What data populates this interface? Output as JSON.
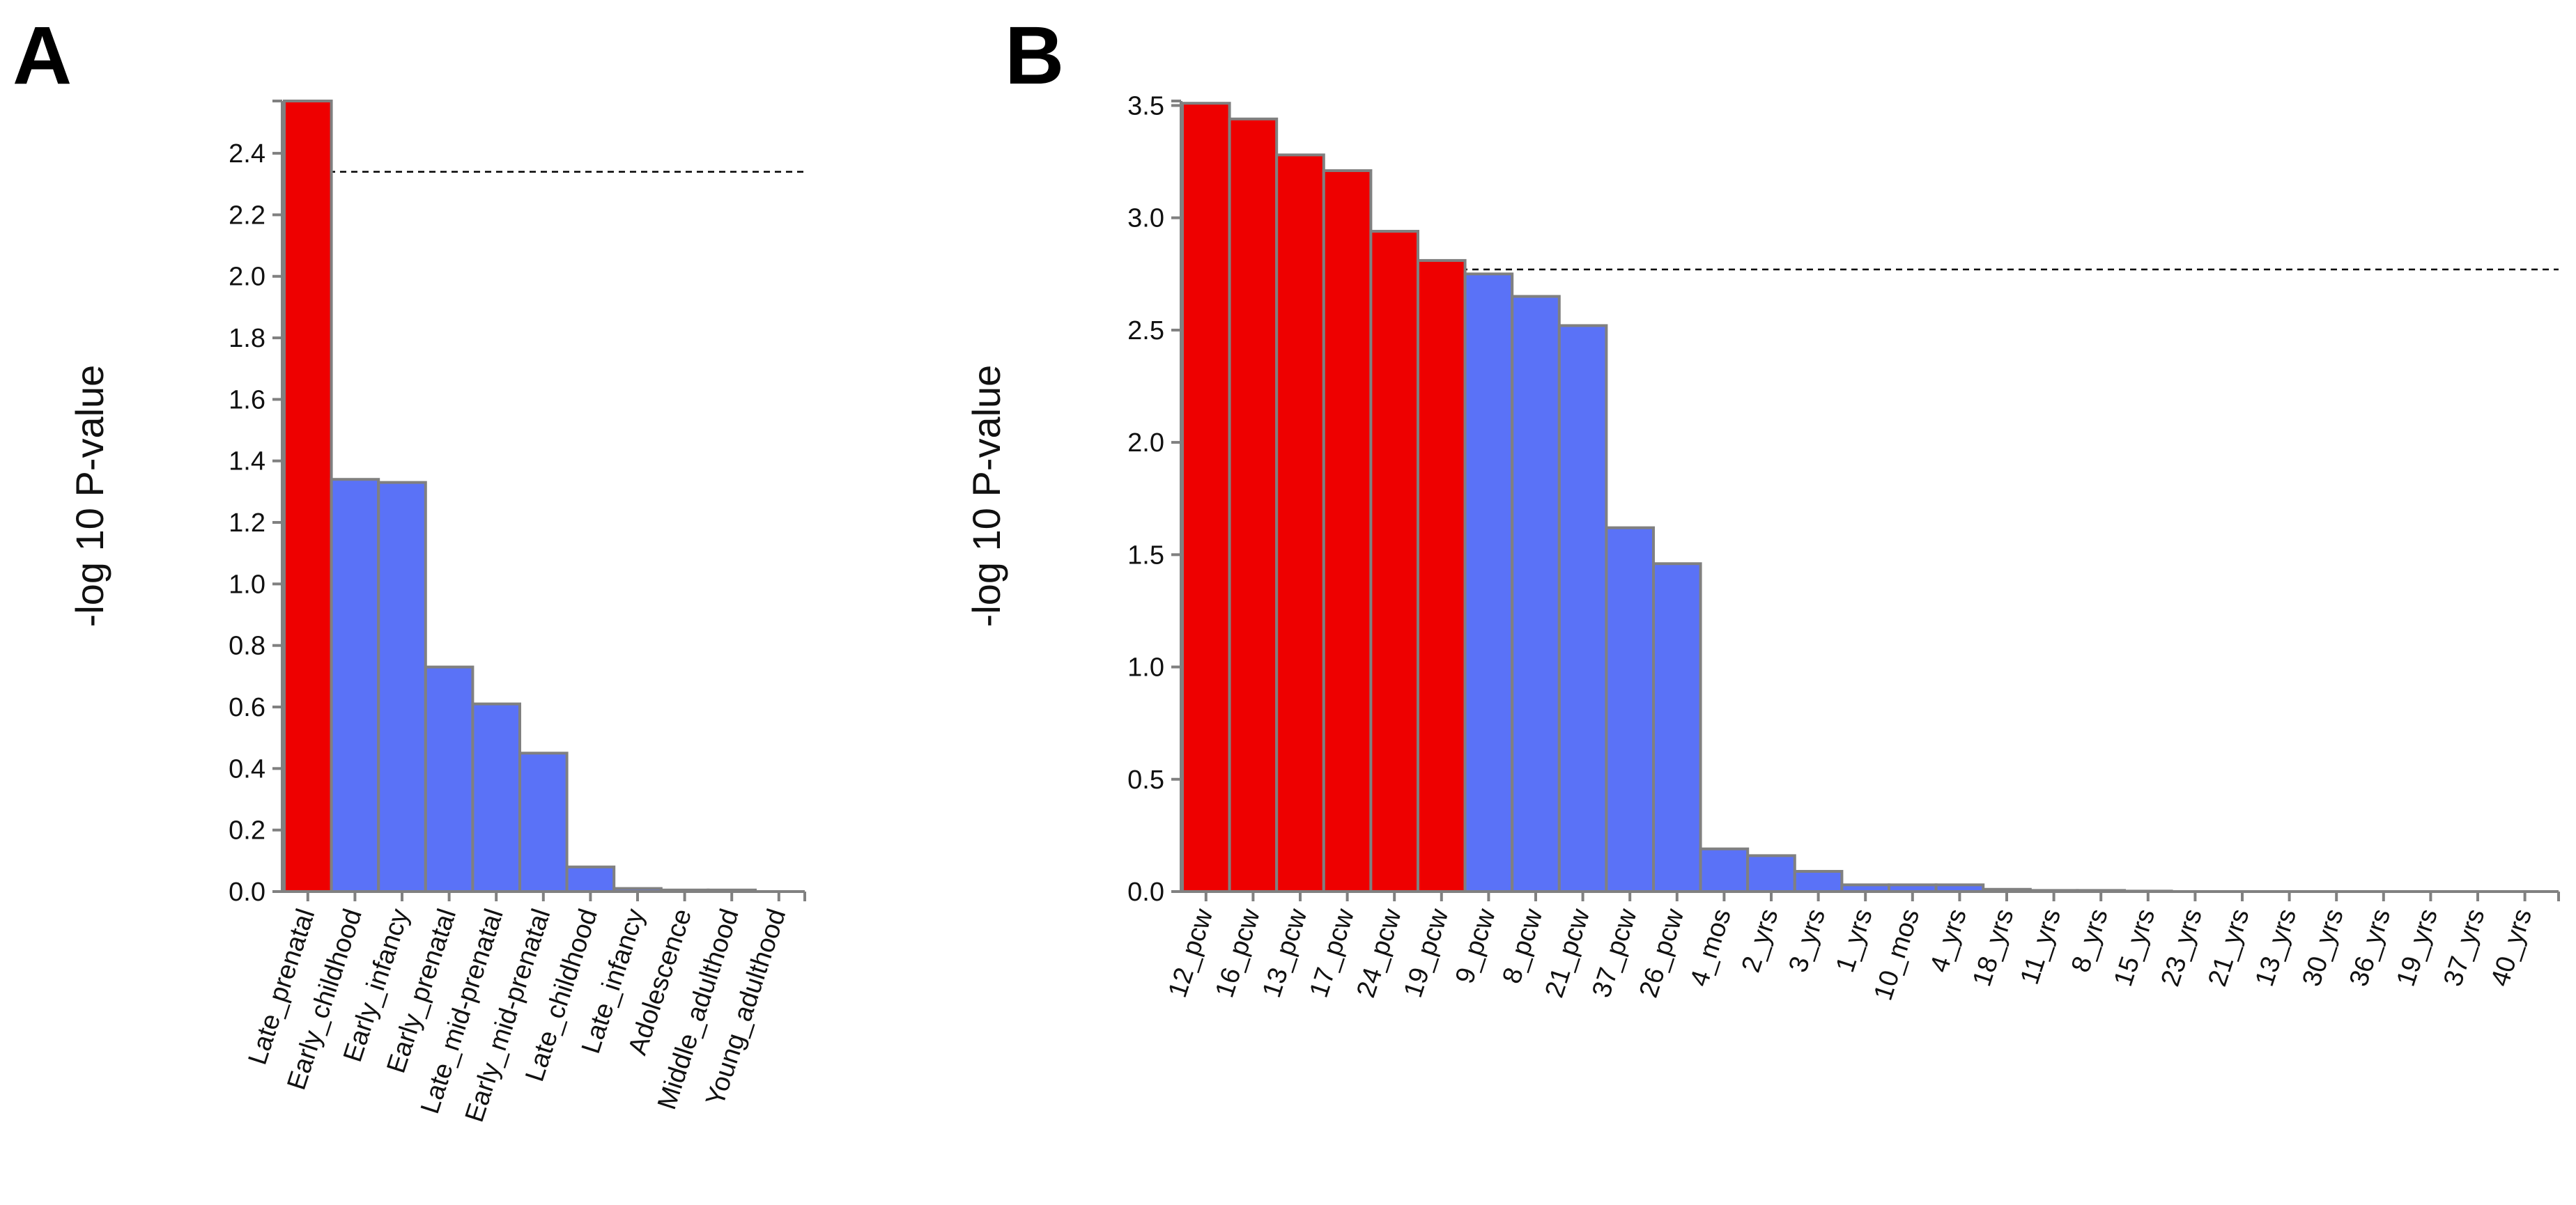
{
  "colors": {
    "significant": "#ee0000",
    "nonsignificant": "#5a72f7"
  },
  "chart_data": [
    {
      "type": "bar",
      "panel": "A",
      "title": "",
      "xlabel": "",
      "ylabel": "-log 10 P-value",
      "ylim": [
        0,
        2.57
      ],
      "yticks": [
        0.0,
        0.2,
        0.4,
        0.6,
        0.8,
        1.0,
        1.2,
        1.4,
        1.6,
        1.8,
        2.0,
        2.2,
        2.4
      ],
      "ytick_labels": [
        "0.0",
        "0.2",
        "0.4",
        "0.6",
        "0.8",
        "1.0",
        "1.2",
        "1.4",
        "1.6",
        "1.8",
        "2.0",
        "2.2",
        "2.4"
      ],
      "threshold": 2.34,
      "categories": [
        "Late_prenatal",
        "Early_childhood",
        "Early_infancy",
        "Early_prenatal",
        "Late_mid-prenatal",
        "Early_mid-prenatal",
        "Late_childhood",
        "Late_infancy",
        "Adolescence",
        "Middle_adulthood",
        "Young_adulthood"
      ],
      "values": [
        2.57,
        1.34,
        1.33,
        0.73,
        0.61,
        0.45,
        0.08,
        0.01,
        0.005,
        0.005,
        0.0
      ],
      "significant": [
        true,
        false,
        false,
        false,
        false,
        false,
        false,
        false,
        false,
        false,
        false
      ]
    },
    {
      "type": "bar",
      "panel": "B",
      "title": "",
      "xlabel": "",
      "ylabel": "-log 10 P-value",
      "ylim": [
        0,
        3.52
      ],
      "yticks": [
        0.0,
        0.5,
        1.0,
        1.5,
        2.0,
        2.5,
        3.0,
        3.5
      ],
      "ytick_labels": [
        "0.0",
        "0.5",
        "1.0",
        "1.5",
        "2.0",
        "2.5",
        "3.0",
        "3.5"
      ],
      "threshold": 2.77,
      "categories": [
        "12_pcw",
        "16_pcw",
        "13_pcw",
        "17_pcw",
        "24_pcw",
        "19_pcw",
        "9_pcw",
        "8_pcw",
        "21_pcw",
        "37_pcw",
        "26_pcw",
        "4_mos",
        "2_yrs",
        "3_yrs",
        "1_yrs",
        "10_mos",
        "4_yrs",
        "18_yrs",
        "11_yrs",
        "8_yrs",
        "15_yrs",
        "23_yrs",
        "21_yrs",
        "13_yrs",
        "30_yrs",
        "36_yrs",
        "19_yrs",
        "37_yrs",
        "40_yrs"
      ],
      "values": [
        3.51,
        3.44,
        3.28,
        3.21,
        2.94,
        2.81,
        2.75,
        2.65,
        2.52,
        1.62,
        1.46,
        0.19,
        0.16,
        0.09,
        0.03,
        0.03,
        0.03,
        0.01,
        0.005,
        0.005,
        0.002,
        0.0,
        0.0,
        0.0,
        0.0,
        0.0,
        0.0,
        0.0,
        0.0
      ],
      "significant": [
        true,
        true,
        true,
        true,
        true,
        true,
        false,
        false,
        false,
        false,
        false,
        false,
        false,
        false,
        false,
        false,
        false,
        false,
        false,
        false,
        false,
        false,
        false,
        false,
        false,
        false,
        false,
        false,
        false
      ]
    }
  ]
}
